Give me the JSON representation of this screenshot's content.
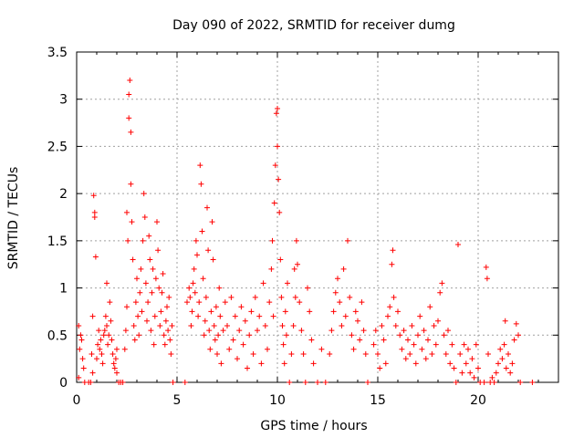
{
  "chart_data": {
    "type": "scatter",
    "title": "Day 090 of 2022, SRMTID for receiver dumg",
    "xlabel": "GPS time / hours",
    "ylabel": "SRMTID / TECUs",
    "xlim": [
      0,
      24
    ],
    "ylim": [
      0,
      3.5
    ],
    "xticks": [
      0,
      5,
      10,
      15,
      20
    ],
    "yticks": [
      0,
      0.5,
      1,
      1.5,
      2,
      2.5,
      3,
      3.5
    ],
    "xtick_labels": [
      "0",
      "5",
      "10",
      "15",
      "20"
    ],
    "ytick_labels": [
      "0",
      "0.5",
      "1",
      "1.5",
      "2",
      "2.5",
      "3",
      "3.5"
    ],
    "grid": true,
    "marker": "+",
    "series": [
      {
        "name": "dumg",
        "color": "#ff0000",
        "points": [
          [
            0.1,
            0.6
          ],
          [
            0.1,
            0.05
          ],
          [
            0.15,
            0.35
          ],
          [
            0.2,
            0.5
          ],
          [
            0.25,
            0.45
          ],
          [
            0.3,
            0.25
          ],
          [
            0.35,
            0.15
          ],
          [
            0.4,
            0.0
          ],
          [
            0.6,
            0.0
          ],
          [
            0.7,
            0.0
          ],
          [
            0.75,
            0.3
          ],
          [
            0.8,
            0.1
          ],
          [
            0.8,
            0.7
          ],
          [
            0.85,
            1.98
          ],
          [
            0.9,
            1.8
          ],
          [
            0.9,
            1.75
          ],
          [
            0.95,
            1.33
          ],
          [
            1.0,
            0.25
          ],
          [
            1.05,
            0.4
          ],
          [
            1.1,
            0.55
          ],
          [
            1.15,
            0.35
          ],
          [
            1.2,
            0.45
          ],
          [
            1.25,
            0.3
          ],
          [
            1.3,
            0.2
          ],
          [
            1.35,
            0.5
          ],
          [
            1.4,
            0.55
          ],
          [
            1.45,
            0.7
          ],
          [
            1.5,
            1.05
          ],
          [
            1.5,
            0.6
          ],
          [
            1.55,
            0.4
          ],
          [
            1.6,
            0.5
          ],
          [
            1.65,
            0.85
          ],
          [
            1.7,
            0.65
          ],
          [
            1.75,
            0.45
          ],
          [
            1.8,
            0.3
          ],
          [
            1.85,
            0.2
          ],
          [
            1.9,
            0.15
          ],
          [
            1.95,
            0.25
          ],
          [
            2.0,
            0.1
          ],
          [
            2.0,
            0.35
          ],
          [
            2.1,
            0.0
          ],
          [
            2.2,
            0.0
          ],
          [
            2.3,
            0.0
          ],
          [
            2.4,
            0.35
          ],
          [
            2.45,
            0.55
          ],
          [
            2.5,
            0.8
          ],
          [
            2.5,
            1.8
          ],
          [
            2.55,
            1.5
          ],
          [
            2.6,
            2.8
          ],
          [
            2.6,
            3.05
          ],
          [
            2.65,
            3.2
          ],
          [
            2.7,
            2.65
          ],
          [
            2.7,
            2.1
          ],
          [
            2.75,
            1.7
          ],
          [
            2.8,
            1.3
          ],
          [
            2.85,
            0.6
          ],
          [
            2.9,
            0.45
          ],
          [
            2.95,
            0.85
          ],
          [
            3.0,
            1.1
          ],
          [
            3.05,
            0.7
          ],
          [
            3.1,
            0.5
          ],
          [
            3.15,
            0.95
          ],
          [
            3.2,
            1.2
          ],
          [
            3.25,
            0.75
          ],
          [
            3.3,
            1.5
          ],
          [
            3.35,
            2.0
          ],
          [
            3.4,
            1.75
          ],
          [
            3.45,
            1.05
          ],
          [
            3.5,
            0.65
          ],
          [
            3.55,
            0.85
          ],
          [
            3.6,
            1.55
          ],
          [
            3.65,
            1.3
          ],
          [
            3.7,
            0.55
          ],
          [
            3.75,
            0.95
          ],
          [
            3.8,
            1.2
          ],
          [
            3.85,
            0.4
          ],
          [
            3.9,
            0.7
          ],
          [
            3.95,
            1.1
          ],
          [
            4.0,
            1.7
          ],
          [
            4.05,
            1.4
          ],
          [
            4.1,
            1.0
          ],
          [
            4.15,
            0.6
          ],
          [
            4.2,
            0.75
          ],
          [
            4.25,
            0.95
          ],
          [
            4.3,
            1.15
          ],
          [
            4.35,
            0.5
          ],
          [
            4.4,
            0.4
          ],
          [
            4.45,
            0.65
          ],
          [
            4.5,
            0.8
          ],
          [
            4.55,
            0.55
          ],
          [
            4.6,
            0.9
          ],
          [
            4.65,
            0.45
          ],
          [
            4.7,
            0.3
          ],
          [
            4.75,
            0.6
          ],
          [
            4.8,
            0.0
          ],
          [
            5.4,
            0.0
          ],
          [
            5.5,
            0.85
          ],
          [
            5.6,
            1.0
          ],
          [
            5.65,
            0.9
          ],
          [
            5.7,
            0.6
          ],
          [
            5.75,
            0.75
          ],
          [
            5.8,
            1.05
          ],
          [
            5.85,
            1.2
          ],
          [
            5.9,
            0.95
          ],
          [
            5.95,
            1.5
          ],
          [
            6.0,
            1.35
          ],
          [
            6.05,
            0.7
          ],
          [
            6.1,
            0.85
          ],
          [
            6.15,
            2.3
          ],
          [
            6.2,
            2.1
          ],
          [
            6.25,
            1.6
          ],
          [
            6.3,
            1.1
          ],
          [
            6.35,
            0.5
          ],
          [
            6.4,
            0.65
          ],
          [
            6.45,
            0.9
          ],
          [
            6.5,
            1.85
          ],
          [
            6.55,
            1.4
          ],
          [
            6.6,
            0.55
          ],
          [
            6.65,
            0.35
          ],
          [
            6.7,
            0.75
          ],
          [
            6.75,
            1.7
          ],
          [
            6.8,
            1.3
          ],
          [
            6.85,
            0.6
          ],
          [
            6.9,
            0.45
          ],
          [
            6.95,
            0.8
          ],
          [
            7.0,
            0.3
          ],
          [
            7.05,
            0.5
          ],
          [
            7.1,
            1.0
          ],
          [
            7.15,
            0.7
          ],
          [
            7.2,
            0.2
          ],
          [
            7.3,
            0.55
          ],
          [
            7.4,
            0.85
          ],
          [
            7.5,
            0.6
          ],
          [
            7.6,
            0.35
          ],
          [
            7.7,
            0.9
          ],
          [
            7.8,
            0.45
          ],
          [
            7.9,
            0.7
          ],
          [
            8.0,
            0.25
          ],
          [
            8.1,
            0.55
          ],
          [
            8.2,
            0.8
          ],
          [
            8.3,
            0.4
          ],
          [
            8.4,
            0.65
          ],
          [
            8.5,
            0.15
          ],
          [
            8.6,
            0.5
          ],
          [
            8.7,
            0.75
          ],
          [
            8.8,
            0.3
          ],
          [
            8.9,
            0.9
          ],
          [
            9.0,
            0.55
          ],
          [
            9.1,
            0.7
          ],
          [
            9.2,
            0.2
          ],
          [
            9.3,
            1.05
          ],
          [
            9.4,
            0.6
          ],
          [
            9.5,
            0.35
          ],
          [
            9.6,
            0.85
          ],
          [
            9.7,
            1.2
          ],
          [
            9.75,
            1.5
          ],
          [
            9.8,
            0.7
          ],
          [
            9.85,
            1.9
          ],
          [
            9.9,
            2.3
          ],
          [
            9.95,
            2.85
          ],
          [
            10.0,
            2.9
          ],
          [
            10.0,
            2.5
          ],
          [
            10.05,
            2.15
          ],
          [
            10.1,
            1.8
          ],
          [
            10.15,
            1.3
          ],
          [
            10.2,
            0.9
          ],
          [
            10.25,
            0.6
          ],
          [
            10.3,
            0.4
          ],
          [
            10.35,
            0.2
          ],
          [
            10.4,
            0.75
          ],
          [
            10.45,
            0.5
          ],
          [
            10.5,
            1.05
          ],
          [
            10.6,
            0.0
          ],
          [
            10.7,
            0.3
          ],
          [
            10.8,
            0.6
          ],
          [
            10.85,
            1.2
          ],
          [
            10.9,
            0.9
          ],
          [
            10.95,
            1.5
          ],
          [
            11.0,
            1.25
          ],
          [
            11.1,
            0.85
          ],
          [
            11.2,
            0.55
          ],
          [
            11.3,
            0.3
          ],
          [
            11.4,
            0.0
          ],
          [
            11.5,
            1.0
          ],
          [
            11.6,
            0.75
          ],
          [
            11.7,
            0.45
          ],
          [
            11.8,
            0.2
          ],
          [
            12.0,
            0.0
          ],
          [
            12.2,
            0.35
          ],
          [
            12.4,
            0.0
          ],
          [
            12.6,
            0.3
          ],
          [
            12.7,
            0.55
          ],
          [
            12.8,
            0.75
          ],
          [
            12.9,
            0.95
          ],
          [
            13.0,
            1.1
          ],
          [
            13.1,
            0.85
          ],
          [
            13.2,
            0.6
          ],
          [
            13.3,
            1.2
          ],
          [
            13.4,
            0.7
          ],
          [
            13.5,
            1.5
          ],
          [
            13.6,
            0.9
          ],
          [
            13.7,
            0.5
          ],
          [
            13.8,
            0.35
          ],
          [
            13.9,
            0.75
          ],
          [
            14.0,
            0.65
          ],
          [
            14.1,
            0.45
          ],
          [
            14.2,
            0.85
          ],
          [
            14.3,
            0.55
          ],
          [
            14.4,
            0.3
          ],
          [
            14.5,
            0.0
          ],
          [
            14.8,
            0.4
          ],
          [
            14.9,
            0.55
          ],
          [
            15.0,
            0.3
          ],
          [
            15.1,
            0.15
          ],
          [
            15.2,
            0.6
          ],
          [
            15.3,
            0.45
          ],
          [
            15.4,
            0.2
          ],
          [
            15.5,
            0.7
          ],
          [
            15.6,
            0.8
          ],
          [
            15.7,
            1.25
          ],
          [
            15.75,
            1.4
          ],
          [
            15.8,
            0.9
          ],
          [
            15.9,
            0.6
          ],
          [
            16.0,
            0.75
          ],
          [
            16.1,
            0.5
          ],
          [
            16.2,
            0.35
          ],
          [
            16.3,
            0.55
          ],
          [
            16.4,
            0.25
          ],
          [
            16.5,
            0.45
          ],
          [
            16.6,
            0.3
          ],
          [
            16.7,
            0.6
          ],
          [
            16.8,
            0.4
          ],
          [
            16.9,
            0.2
          ],
          [
            17.0,
            0.5
          ],
          [
            17.1,
            0.7
          ],
          [
            17.2,
            0.35
          ],
          [
            17.3,
            0.55
          ],
          [
            17.4,
            0.25
          ],
          [
            17.5,
            0.45
          ],
          [
            17.6,
            0.8
          ],
          [
            17.7,
            0.3
          ],
          [
            17.8,
            0.6
          ],
          [
            17.9,
            0.4
          ],
          [
            18.0,
            0.65
          ],
          [
            18.1,
            0.95
          ],
          [
            18.2,
            1.05
          ],
          [
            18.3,
            0.5
          ],
          [
            18.4,
            0.3
          ],
          [
            18.5,
            0.55
          ],
          [
            18.6,
            0.2
          ],
          [
            18.7,
            0.4
          ],
          [
            18.8,
            0.15
          ],
          [
            18.9,
            0.0
          ],
          [
            19.0,
            1.46
          ],
          [
            19.1,
            0.3
          ],
          [
            19.2,
            0.1
          ],
          [
            19.3,
            0.4
          ],
          [
            19.4,
            0.2
          ],
          [
            19.5,
            0.35
          ],
          [
            19.6,
            0.1
          ],
          [
            19.7,
            0.25
          ],
          [
            19.8,
            0.05
          ],
          [
            19.9,
            0.4
          ],
          [
            20.0,
            0.15
          ],
          [
            20.1,
            0.0
          ],
          [
            20.3,
            0.0
          ],
          [
            20.4,
            1.22
          ],
          [
            20.45,
            1.1
          ],
          [
            20.5,
            0.3
          ],
          [
            20.6,
            0.0
          ],
          [
            20.7,
            0.05
          ],
          [
            20.8,
            0.0
          ],
          [
            20.9,
            0.1
          ],
          [
            21.0,
            0.2
          ],
          [
            21.1,
            0.35
          ],
          [
            21.2,
            0.25
          ],
          [
            21.3,
            0.4
          ],
          [
            21.35,
            0.65
          ],
          [
            21.4,
            0.15
          ],
          [
            21.5,
            0.3
          ],
          [
            21.6,
            0.1
          ],
          [
            21.7,
            0.2
          ],
          [
            21.8,
            0.45
          ],
          [
            21.9,
            0.62
          ],
          [
            22.0,
            0.5
          ],
          [
            22.1,
            0.0
          ],
          [
            22.7,
            0.0
          ]
        ]
      }
    ]
  }
}
